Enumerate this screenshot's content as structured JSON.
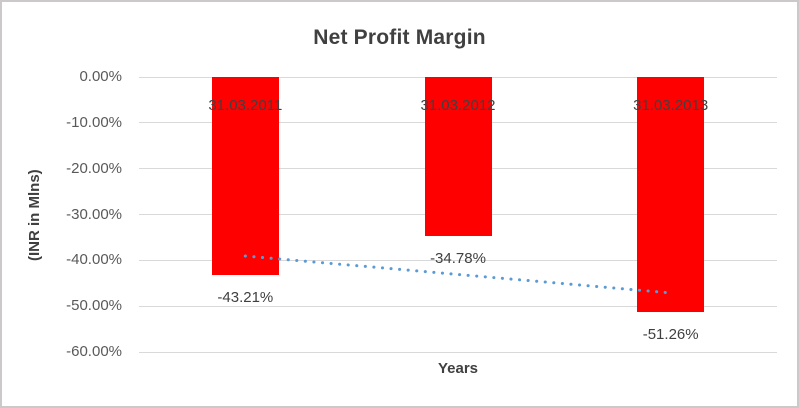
{
  "chart_data": {
    "type": "bar",
    "title": "Net Profit Margin",
    "categories": [
      "31.03.2011",
      "31.03.2012",
      "31.03.2013"
    ],
    "values": [
      -43.21,
      -34.78,
      -51.26
    ],
    "data_labels": [
      "-43.21%",
      "-34.78%",
      "-51.26%"
    ],
    "xlabel": "Years",
    "ylabel": "(INR in Mlns)",
    "ylim": [
      0,
      -60
    ],
    "y_ticks": [
      "0.00%",
      "-10.00%",
      "-20.00%",
      "-30.00%",
      "-40.00%",
      "-50.00%",
      "-60.00%"
    ],
    "grid": true,
    "legend": "none",
    "bar_color": "#ff0000",
    "trendline": {
      "fit": "linear",
      "style": "dotted",
      "color": "#5b9bd5",
      "start_value_pct": -39.06,
      "end_value_pct": -47.11
    }
  },
  "colors": {
    "gridline": "#d9d9d9",
    "tick_text": "#595959",
    "label_text": "#404040",
    "title_text": "#404040",
    "chart_border": "#cbc9c9",
    "background": "#ffffff"
  }
}
